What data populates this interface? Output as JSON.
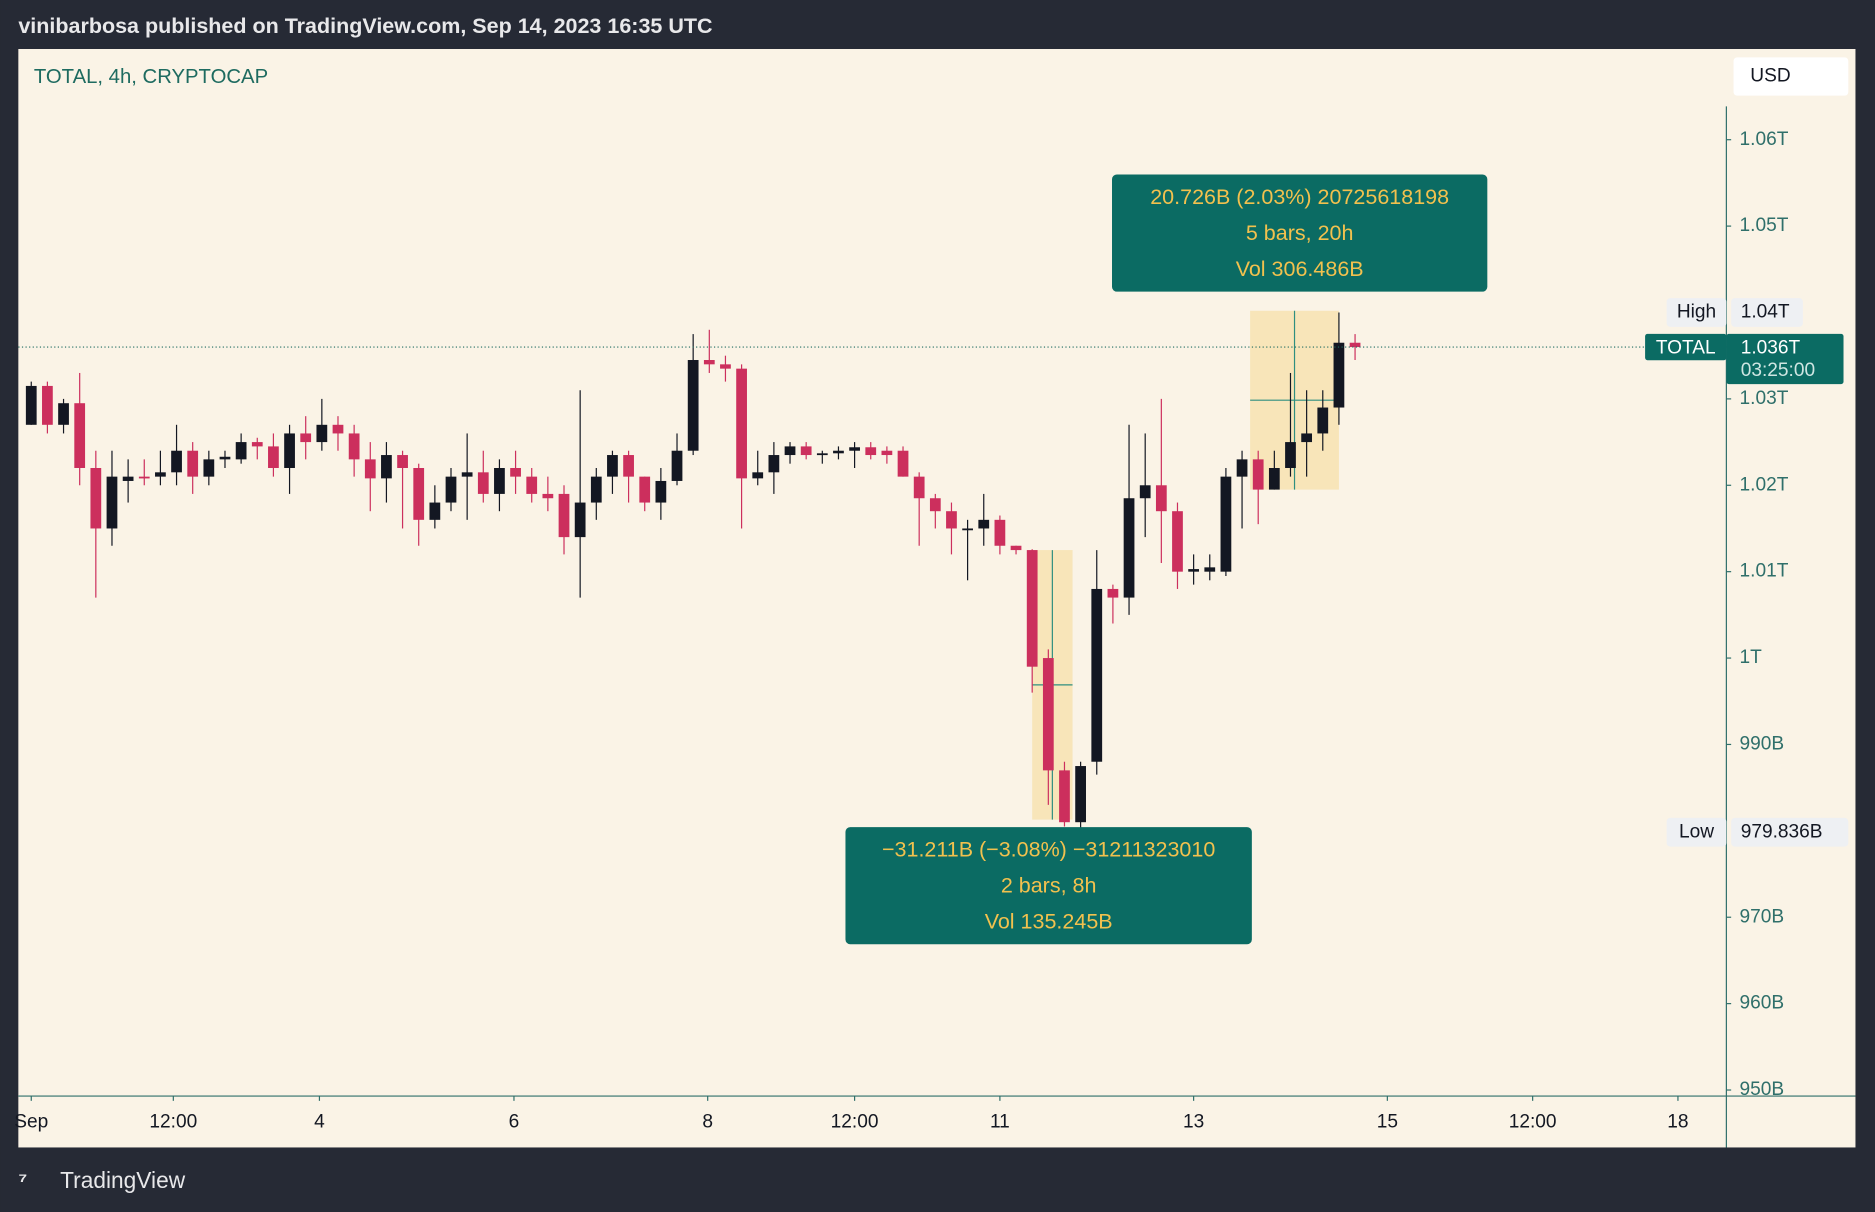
{
  "header": "vinibarbosa published on TradingView.com, Sep 14, 2023 16:35 UTC",
  "footer": "TradingView",
  "chart_data": {
    "type": "candlestick",
    "title": "TOTAL, 4h, CRYPTOCAP",
    "currency": "USD",
    "up_color": "#131722",
    "down_color": "#cc2f5d",
    "x": [
      0,
      1,
      2,
      3,
      4,
      5,
      6,
      7,
      8,
      9,
      10,
      11,
      12,
      13,
      14,
      15,
      16,
      17,
      18,
      19,
      20,
      21,
      22,
      23,
      24,
      25,
      26,
      27,
      28,
      29,
      30,
      31,
      32,
      33,
      34,
      35,
      36,
      37,
      38,
      39,
      40,
      41,
      42,
      43,
      44,
      45,
      46,
      47,
      48,
      49,
      50,
      51,
      52,
      53,
      54,
      55,
      56,
      57,
      58,
      59,
      60,
      61,
      62,
      63,
      64,
      65,
      66,
      67,
      68,
      69,
      70,
      71,
      72,
      73,
      74,
      75,
      76,
      77,
      78,
      79,
      80,
      81,
      82
    ],
    "open": [
      1027,
      1031.5,
      1027,
      1029.5,
      1022,
      1015,
      1020.5,
      1021,
      1021,
      1021.5,
      1024,
      1021,
      1023,
      1023,
      1025,
      1024.5,
      1022,
      1026,
      1025,
      1027,
      1026,
      1023,
      1020.8,
      1023.5,
      1022,
      1016,
      1018,
      1021,
      1021.5,
      1019,
      1022,
      1021,
      1019,
      1019,
      1014,
      1018,
      1021,
      1023.5,
      1021,
      1018,
      1020.5,
      1024,
      1034.5,
      1034,
      1033.5,
      1020.8,
      1021.5,
      1023.5,
      1024.5,
      1023.5,
      1023.7,
      1024,
      1024.4,
      1024,
      1024,
      1021,
      1018.5,
      1017,
      1015,
      1015,
      1016,
      1013,
      1012.5,
      1000,
      987,
      981,
      988,
      1008,
      1007,
      1018.5,
      1020,
      1017,
      1010,
      1010,
      1010,
      1021,
      1023,
      1019.5,
      1022,
      1025,
      1026,
      1029,
      1036.5
    ],
    "high": [
      1032,
      1032,
      1030,
      1033,
      1024,
      1024,
      1023,
      1023,
      1024,
      1027,
      1025,
      1024,
      1024,
      1026,
      1025.5,
      1026,
      1027,
      1028,
      1030,
      1028,
      1027,
      1025,
      1025,
      1024,
      1022.5,
      1020,
      1022,
      1026,
      1024,
      1023,
      1024,
      1022,
      1021,
      1020,
      1031,
      1022,
      1024,
      1024,
      1021,
      1022,
      1026,
      1037.5,
      1038,
      1035,
      1034,
      1024,
      1025,
      1025,
      1025,
      1024,
      1024.5,
      1025,
      1025,
      1024.5,
      1024.5,
      1021.5,
      1019,
      1018,
      1016,
      1019,
      1016.5,
      1013,
      1012.6,
      1001,
      988,
      988,
      1012.5,
      1008.5,
      1027,
      1026,
      1030,
      1018,
      1012,
      1012,
      1022,
      1024,
      1024,
      1024,
      1033,
      1031,
      1031,
      1040,
      1037.5
    ],
    "low": [
      1027,
      1026,
      1026,
      1020,
      1007,
      1013,
      1018,
      1020,
      1020,
      1020,
      1019,
      1020,
      1022,
      1022.5,
      1023,
      1021,
      1019,
      1023,
      1024,
      1024,
      1021,
      1017,
      1018,
      1015,
      1013,
      1015,
      1017,
      1016,
      1018,
      1017,
      1019,
      1018,
      1017,
      1012,
      1007,
      1016,
      1019,
      1018,
      1017,
      1016,
      1020,
      1023.5,
      1033,
      1032,
      1015,
      1020,
      1019,
      1022.5,
      1023,
      1022.5,
      1023,
      1022,
      1023,
      1022.5,
      1021,
      1013,
      1015,
      1012,
      1009,
      1013,
      1012,
      1012,
      996,
      983,
      980.5,
      979.836,
      986.5,
      1004,
      1005,
      1014,
      1011,
      1008,
      1008.5,
      1009,
      1009.5,
      1015,
      1015.5,
      1019.5,
      1021,
      1021,
      1024,
      1027,
      1034.5
    ],
    "close": [
      1031.5,
      1027,
      1029.5,
      1022,
      1015,
      1021,
      1021,
      1020.8,
      1021.5,
      1024,
      1021,
      1023,
      1023.3,
      1025,
      1024.5,
      1022,
      1026,
      1025,
      1027,
      1026,
      1023,
      1020.8,
      1023.5,
      1022,
      1016,
      1018,
      1021,
      1021.5,
      1019,
      1022,
      1021,
      1019,
      1018.5,
      1014,
      1018,
      1021,
      1023.5,
      1021,
      1018,
      1020.5,
      1024,
      1034.5,
      1034,
      1033.5,
      1020.8,
      1021.5,
      1023.5,
      1024.5,
      1023.5,
      1023.7,
      1024,
      1024.4,
      1023.5,
      1023.5,
      1021,
      1018.5,
      1017,
      1015,
      1015,
      1016,
      1013,
      1012.5,
      999,
      987,
      981,
      987.5,
      1008,
      1007,
      1018.5,
      1020,
      1017,
      1010,
      1010.3,
      1010.5,
      1021,
      1023,
      1019.5,
      1022,
      1025,
      1026,
      1029,
      1036.5,
      1036
    ],
    "xlim": [
      -0.8,
      105
    ],
    "ylim": [
      949.3,
      1070.5
    ],
    "xticks": [
      {
        "value": 0,
        "label": "Sep"
      },
      {
        "value": 8.8,
        "label": "12:00"
      },
      {
        "value": 17.85,
        "label": "4"
      },
      {
        "value": 29.9,
        "label": "6"
      },
      {
        "value": 41.9,
        "label": "8"
      },
      {
        "value": 51,
        "label": "12:00"
      },
      {
        "value": 60,
        "label": "11"
      },
      {
        "value": 72,
        "label": "13"
      },
      {
        "value": 84,
        "label": "15"
      },
      {
        "value": 93,
        "label": "12:00"
      },
      {
        "value": 102,
        "label": "18"
      }
    ],
    "yticks": [
      {
        "value": 1060,
        "label": "1.06T"
      },
      {
        "value": 1050,
        "label": "1.05T"
      },
      {
        "value": 1030,
        "label": "1.03T"
      },
      {
        "value": 1020,
        "label": "1.02T"
      },
      {
        "value": 1010,
        "label": "1.01T"
      },
      {
        "value": 1000,
        "label": "1T"
      },
      {
        "value": 990,
        "label": "990B"
      },
      {
        "value": 970,
        "label": "970B"
      },
      {
        "value": 960,
        "label": "960B"
      },
      {
        "value": 950,
        "label": "950B"
      }
    ],
    "high_marker": {
      "label": "High",
      "value": 1040,
      "value_label": "1.04T"
    },
    "low_marker": {
      "label": "Low",
      "value": 979.836,
      "value_label": "979.836B"
    },
    "last_price": {
      "name": "TOTAL",
      "value": 1036,
      "value_label": "1.036T",
      "countdown": "03:25:00"
    },
    "measurements": [
      {
        "x": [
          75.5,
          81
        ],
        "values": [
          1019.5,
          1040.2
        ],
        "lines": [
          "20.726B (2.03%) 20725618198",
          "5 bars, 20h",
          "Vol 306.486B"
        ]
      },
      {
        "x": [
          62,
          64.5
        ],
        "values": [
          1012.5,
          981.3
        ],
        "lines": [
          "−31.211B (−3.08%) −31211323010",
          "2 bars, 8h",
          "Vol 135.245B"
        ]
      }
    ]
  }
}
